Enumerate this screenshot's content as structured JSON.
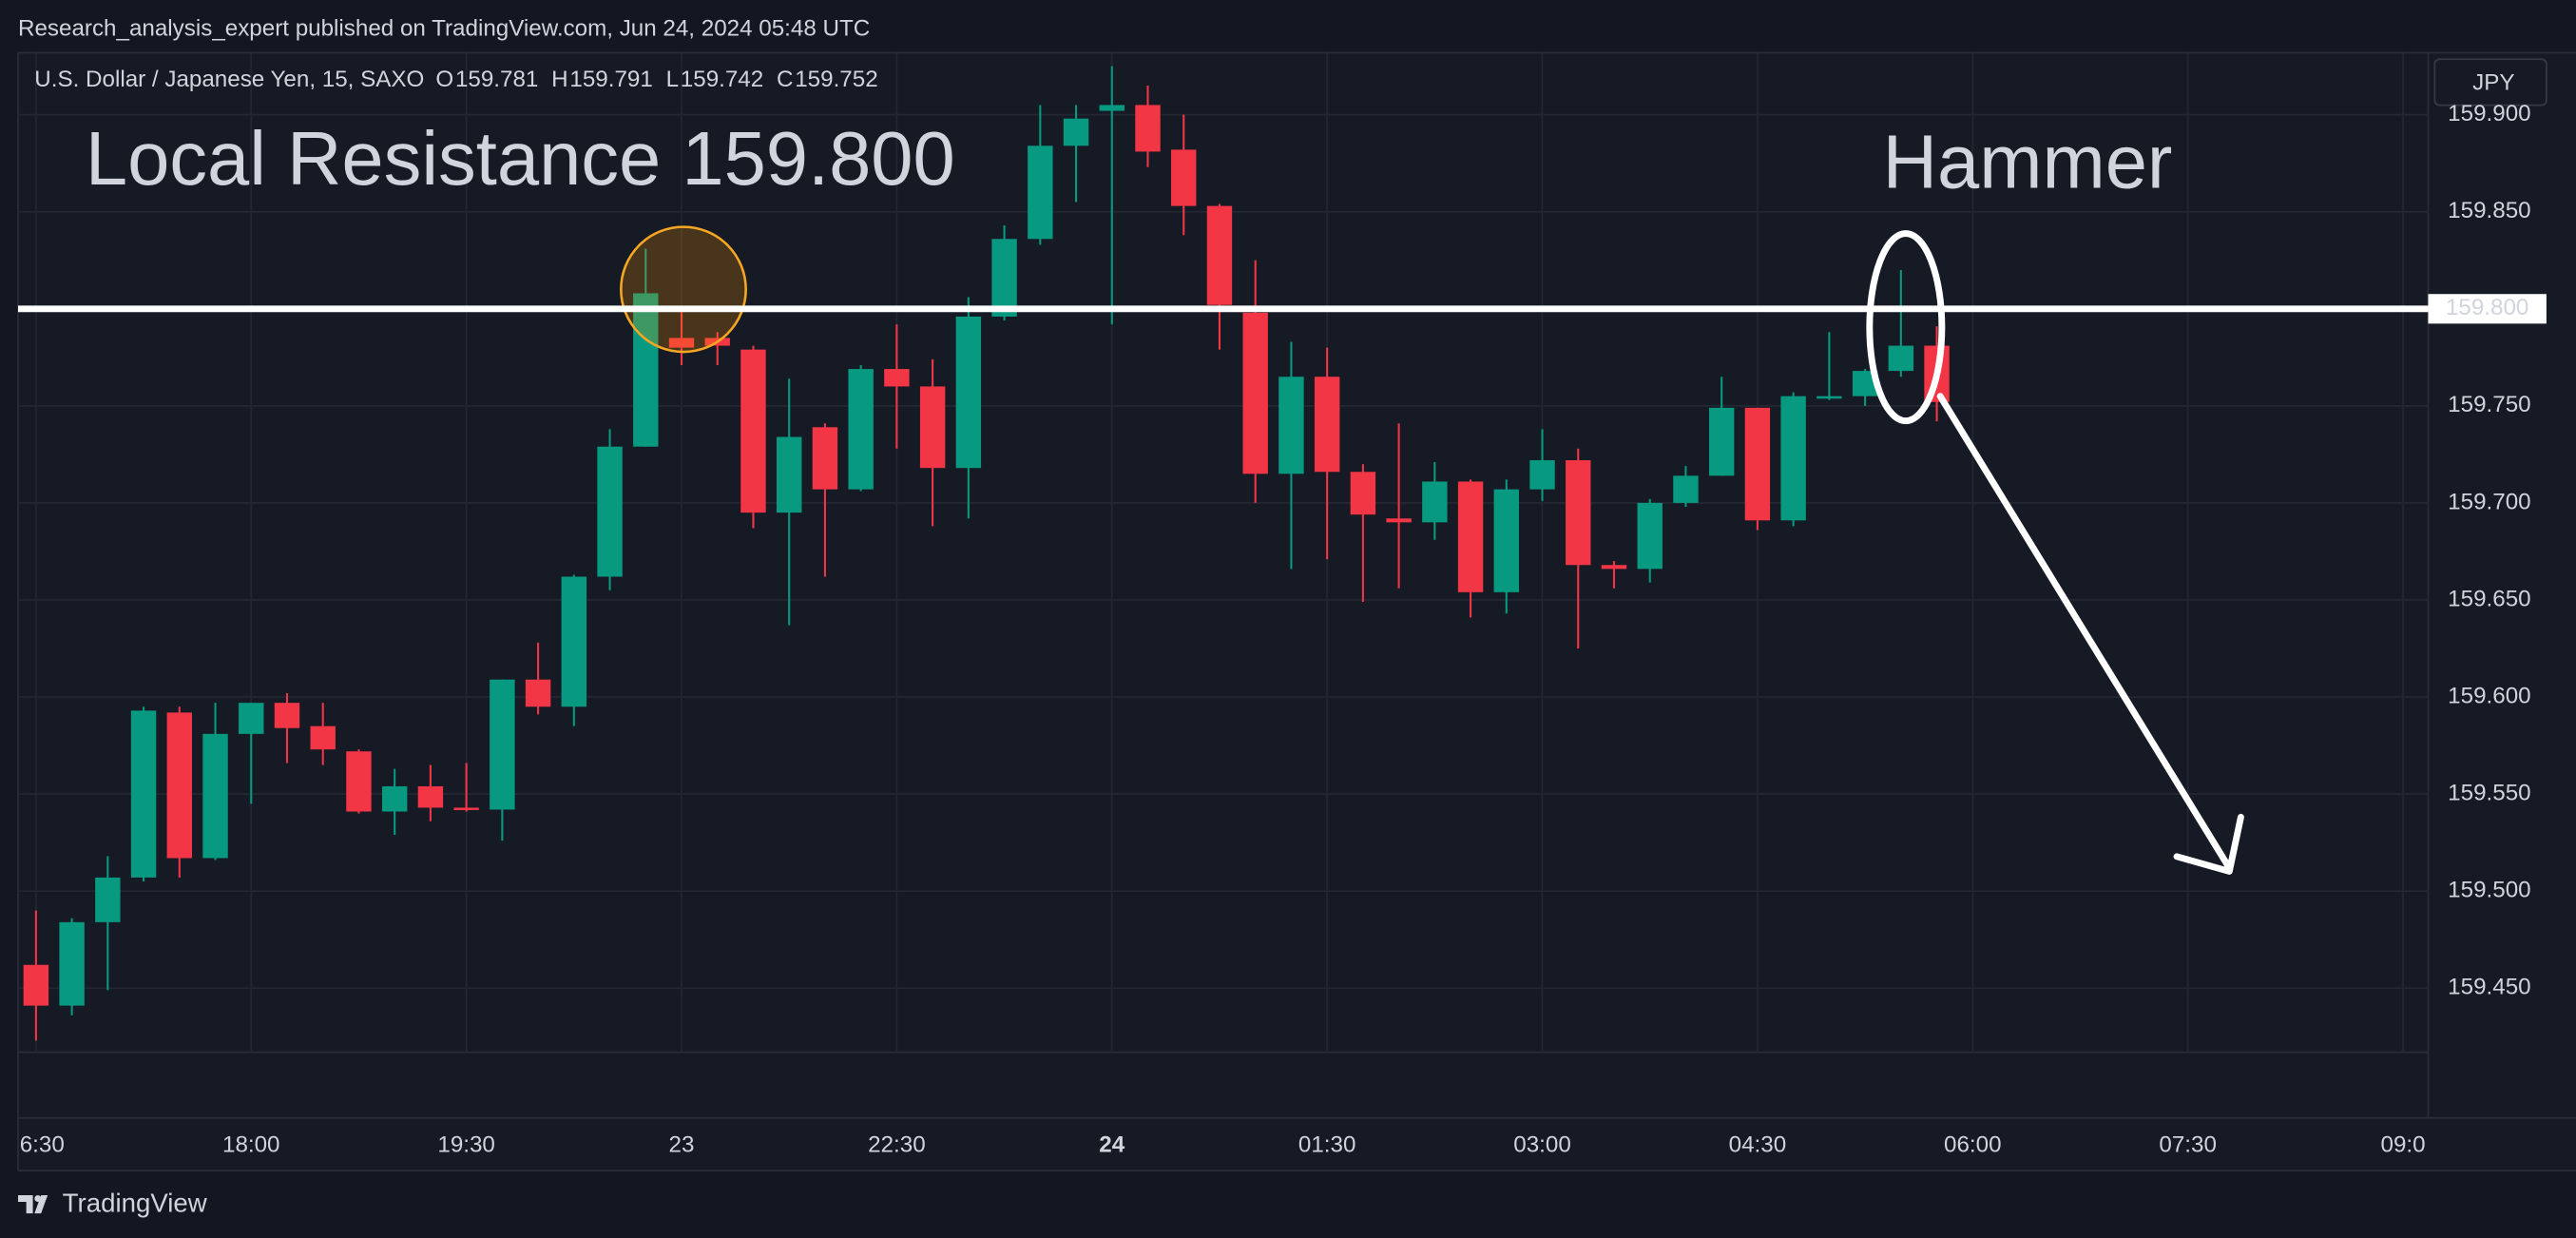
{
  "published": "Research_analysis_expert published on TradingView.com, Jun 24, 2024 05:48 UTC",
  "brand": "TradingView",
  "currency": "JPY",
  "chart_data": {
    "type": "candlestick",
    "symbol": "U.S. Dollar / Japanese Yen, 15, SAXO",
    "ohlc": [
      {
        "label": "O",
        "value": 159.781
      },
      {
        "label": "H",
        "value": 159.791
      },
      {
        "label": "L",
        "value": 159.742
      },
      {
        "label": "C",
        "value": 159.752
      }
    ],
    "annotations": [
      {
        "text": "Local Resistance 159.800"
      },
      {
        "text": "Hammer"
      }
    ],
    "hline": {
      "value": 159.8,
      "label": "159.800",
      "color": "#ffffff"
    },
    "up_color": "#089981",
    "down_color": "#f23645",
    "grid": true,
    "open": [
      159.462,
      159.441,
      159.484,
      159.507,
      159.592,
      159.517,
      159.581,
      159.597,
      159.585,
      159.572,
      159.541,
      159.554,
      159.543,
      159.542,
      159.609,
      159.595,
      159.662,
      159.729,
      159.785,
      159.785,
      159.779,
      159.695,
      159.739,
      159.707,
      159.769,
      159.76,
      159.718,
      159.796,
      159.836,
      159.884,
      159.902,
      159.905,
      159.882,
      159.853,
      159.798,
      159.715,
      159.765,
      159.716,
      159.692,
      159.69,
      159.711,
      159.654,
      159.707,
      159.722,
      159.668,
      159.666,
      159.7,
      159.714,
      159.749,
      159.691,
      159.754,
      159.755,
      159.768,
      159.781
    ],
    "high": [
      159.49,
      159.486,
      159.518,
      159.595,
      159.595,
      159.597,
      159.597,
      159.602,
      159.597,
      159.573,
      159.563,
      159.565,
      159.566,
      159.609,
      159.628,
      159.663,
      159.738,
      159.831,
      159.8,
      159.788,
      159.781,
      159.764,
      159.741,
      159.771,
      159.792,
      159.774,
      159.806,
      159.843,
      159.905,
      159.905,
      159.925,
      159.915,
      159.9,
      159.854,
      159.825,
      159.783,
      159.78,
      159.72,
      159.741,
      159.721,
      159.712,
      159.712,
      159.738,
      159.728,
      159.67,
      159.702,
      159.719,
      159.765,
      159.749,
      159.757,
      159.788,
      159.769,
      159.82,
      159.791
    ],
    "low": [
      159.423,
      159.436,
      159.449,
      159.505,
      159.507,
      159.516,
      159.545,
      159.566,
      159.565,
      159.54,
      159.529,
      159.536,
      159.541,
      159.526,
      159.591,
      159.585,
      159.655,
      159.729,
      159.771,
      159.771,
      159.687,
      159.637,
      159.662,
      159.706,
      159.728,
      159.688,
      159.692,
      159.794,
      159.833,
      159.855,
      159.792,
      159.873,
      159.838,
      159.779,
      159.7,
      159.666,
      159.671,
      159.649,
      159.656,
      159.681,
      159.641,
      159.643,
      159.701,
      159.625,
      159.656,
      159.659,
      159.698,
      159.714,
      159.686,
      159.688,
      159.753,
      159.75,
      159.765,
      159.742
    ],
    "close": [
      159.441,
      159.484,
      159.507,
      159.593,
      159.517,
      159.581,
      159.597,
      159.584,
      159.573,
      159.541,
      159.554,
      159.543,
      159.542,
      159.609,
      159.595,
      159.662,
      159.729,
      159.808,
      159.78,
      159.781,
      159.695,
      159.734,
      159.707,
      159.769,
      159.76,
      159.718,
      159.796,
      159.836,
      159.884,
      159.898,
      159.905,
      159.881,
      159.853,
      159.802,
      159.715,
      159.765,
      159.716,
      159.694,
      159.69,
      159.711,
      159.654,
      159.707,
      159.722,
      159.668,
      159.666,
      159.7,
      159.714,
      159.749,
      159.691,
      159.755,
      159.755,
      159.768,
      159.781,
      159.752
    ],
    "xlim": [
      -0.5,
      66.7
    ],
    "xticks": [
      {
        "value": 0,
        "label": "6:30"
      },
      {
        "value": 6,
        "label": "18:00"
      },
      {
        "value": 12,
        "label": "19:30"
      },
      {
        "value": 18,
        "label": "23"
      },
      {
        "value": 24,
        "label": "22:30"
      },
      {
        "value": 30,
        "label": "24"
      },
      {
        "value": 36,
        "label": "01:30"
      },
      {
        "value": 42,
        "label": "03:00"
      },
      {
        "value": 48,
        "label": "04:30"
      },
      {
        "value": 54,
        "label": "06:00"
      },
      {
        "value": 60,
        "label": "07:30"
      },
      {
        "value": 66,
        "label": "09:0"
      }
    ],
    "bold_xtick": 5,
    "ylim": [
      159.417,
      159.932
    ],
    "yticks": [
      {
        "value": 159.45,
        "label": "159.450"
      },
      {
        "value": 159.5,
        "label": "159.500"
      },
      {
        "value": 159.55,
        "label": "159.550"
      },
      {
        "value": 159.6,
        "label": "159.600"
      },
      {
        "value": 159.65,
        "label": "159.650"
      },
      {
        "value": 159.7,
        "label": "159.700"
      },
      {
        "value": 159.75,
        "label": "159.750"
      },
      {
        "value": 159.8,
        "label": "159.800"
      },
      {
        "value": 159.85,
        "label": "159.850"
      },
      {
        "value": 159.9,
        "label": "159.900"
      }
    ]
  }
}
